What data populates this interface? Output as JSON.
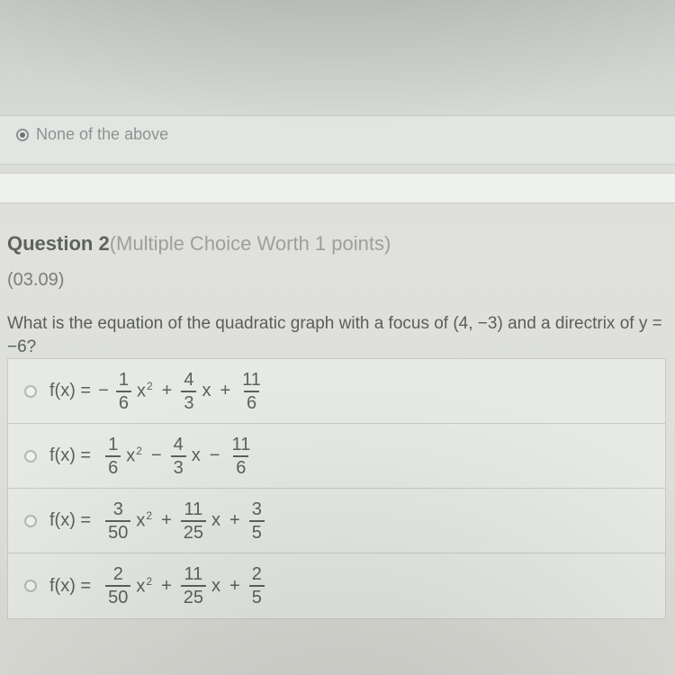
{
  "prev_option": {
    "label": "None of the above",
    "selected": true
  },
  "question": {
    "number_label": "Question 2",
    "meta": "(Multiple Choice Worth 1 points)",
    "code": "(03.09)",
    "stem": "What is the equation of the quadratic graph with a focus of (4, −3) and a directrix of y = −6?"
  },
  "common": {
    "fx": "f(x) =",
    "x2": "x",
    "x": "x"
  },
  "options": [
    {
      "id": "opt-a",
      "lead_neg": "−",
      "a_num": "1",
      "a_den": "6",
      "op1": "+",
      "b_num": "4",
      "b_den": "3",
      "op2": "+",
      "c_num": "11",
      "c_den": "6"
    },
    {
      "id": "opt-b",
      "lead_neg": "",
      "a_num": "1",
      "a_den": "6",
      "op1": "−",
      "b_num": "4",
      "b_den": "3",
      "op2": "−",
      "c_num": "11",
      "c_den": "6"
    },
    {
      "id": "opt-c",
      "lead_neg": "",
      "a_num": "3",
      "a_den": "50",
      "op1": "+",
      "b_num": "11",
      "b_den": "25",
      "op2": "+",
      "c_num": "3",
      "c_den": "5"
    },
    {
      "id": "opt-d",
      "lead_neg": "",
      "a_num": "2",
      "a_den": "50",
      "op1": "+",
      "b_num": "11",
      "b_den": "25",
      "op2": "+",
      "c_num": "2",
      "c_den": "5"
    }
  ],
  "style": {
    "row_bg": "#e6e9e4",
    "row_border": "#c7cbc4",
    "text_color": "#5c615e",
    "radio_border": "#b3b9b3",
    "strip_bg": "#e2e5e2"
  }
}
